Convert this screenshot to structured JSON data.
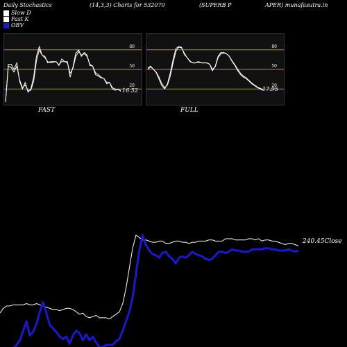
{
  "header": {
    "left": "Daily Stochastics",
    "center": "(14,3,3) Charts for 532070",
    "right_a": "(SUPERB P",
    "right_b": "APER) munafasutra.in"
  },
  "legend": [
    {
      "label": "Slow  D",
      "color": "#ffffff"
    },
    {
      "label": "Fast K",
      "color": "#ffffff"
    },
    {
      "label": "OBV",
      "color": "#0000ff"
    }
  ],
  "colors": {
    "background": "#000000",
    "panel": "#111111",
    "level_line": "#c8860a",
    "price": "#ffffff",
    "obv": "#1a1acc"
  },
  "chart_data": [
    {
      "type": "line",
      "title": "FAST",
      "ylim": [
        0,
        100
      ],
      "levels": [
        20,
        50,
        80
      ],
      "level_labels": [
        "20",
        "50",
        "80"
      ],
      "last_value": "16.52",
      "series": [
        {
          "values": [
            0,
            58,
            58,
            50,
            60,
            32,
            20,
            30,
            15,
            20,
            38,
            70,
            85,
            72,
            70,
            60,
            62,
            62,
            62,
            56,
            66,
            62,
            62,
            38,
            54,
            75,
            80,
            70,
            76,
            72,
            56,
            55,
            42,
            40,
            37,
            36,
            28,
            30,
            20,
            18,
            20,
            16.52
          ]
        },
        {
          "values": [
            0,
            55,
            53,
            46,
            55,
            34,
            22,
            26,
            18,
            18,
            32,
            63,
            80,
            72,
            68,
            62,
            60,
            61,
            62,
            57,
            62,
            62,
            60,
            44,
            52,
            70,
            77,
            72,
            74,
            70,
            58,
            55,
            45,
            42,
            38,
            36,
            30,
            30,
            22,
            20,
            19,
            18
          ]
        }
      ]
    },
    {
      "type": "line",
      "title": "FULL",
      "ylim": [
        0,
        100
      ],
      "levels": [
        20,
        50,
        80
      ],
      "level_labels": [
        "20",
        "50",
        "80"
      ],
      "last_value": "17.95",
      "series": [
        {
          "values": [
            52,
            55,
            50,
            45,
            35,
            25,
            20,
            28,
            45,
            65,
            82,
            85,
            84,
            73,
            68,
            62,
            60,
            60,
            62,
            60,
            60,
            60,
            58,
            48,
            55,
            70,
            76,
            76,
            74,
            70,
            62,
            56,
            48,
            42,
            38,
            36,
            32,
            28,
            25,
            22,
            20,
            17.95
          ]
        },
        {
          "values": [
            50,
            54,
            50,
            46,
            38,
            28,
            22,
            26,
            40,
            60,
            78,
            84,
            83,
            75,
            68,
            63,
            60,
            60,
            61,
            60,
            60,
            60,
            58,
            50,
            54,
            68,
            74,
            75,
            74,
            70,
            63,
            57,
            50,
            44,
            40,
            37,
            33,
            29,
            26,
            23,
            21,
            19
          ]
        }
      ]
    },
    {
      "type": "line",
      "last_value_label": "240.45Close",
      "series": [
        {
          "values": [
            0.27,
            0.31,
            0.33,
            0.33,
            0.34,
            0.34,
            0.34,
            0.34,
            0.35,
            0.34,
            0.34,
            0.35,
            0.34,
            0.33,
            0.32,
            0.31,
            0.3,
            0.3,
            0.29,
            0.3,
            0.31,
            0.31,
            0.3,
            0.28,
            0.26,
            0.27,
            0.24,
            0.23,
            0.24,
            0.25,
            0.23,
            0.23,
            0.23,
            0.22,
            0.24,
            0.26,
            0.28,
            0.35,
            0.48,
            0.65,
            0.82,
            0.93,
            0.91,
            0.89,
            0.89,
            0.88,
            0.87,
            0.87,
            0.88,
            0.88,
            0.86,
            0.86,
            0.87,
            0.88,
            0.88,
            0.87,
            0.87,
            0.86,
            0.87,
            0.87,
            0.88,
            0.88,
            0.88,
            0.89,
            0.89,
            0.88,
            0.88,
            0.88,
            0.9,
            0.9,
            0.9,
            0.89,
            0.89,
            0.89,
            0.89,
            0.9,
            0.9,
            0.89,
            0.9,
            0.88,
            0.89,
            0.89,
            0.88,
            0.88,
            0.87,
            0.86,
            0.85,
            0.86,
            0.86,
            0.85,
            0.84
          ]
        },
        {
          "values": [
            -0.03,
            -0.03,
            -0.03,
            -0.03,
            -0.03,
            0.0,
            0.04,
            0.12,
            0.2,
            0.08,
            0.11,
            0.18,
            0.28,
            0.36,
            0.27,
            0.17,
            0.14,
            0.11,
            0.07,
            0.05,
            0.07,
            0.01,
            0.08,
            0.12,
            0.1,
            0.04,
            0.09,
            0.04,
            0.07,
            0.02,
            -0.02,
            -0.02,
            0.0,
            0.0,
            0.0,
            0.03,
            0.05,
            0.12,
            0.2,
            0.28,
            0.4,
            0.6,
            0.8,
            0.93,
            0.85,
            0.8,
            0.77,
            0.76,
            0.74,
            0.78,
            0.79,
            0.75,
            0.73,
            0.69,
            0.74,
            0.75,
            0.74,
            0.76,
            0.79,
            0.77,
            0.76,
            0.75,
            0.73,
            0.72,
            0.73,
            0.76,
            0.79,
            0.79,
            0.78,
            0.79,
            0.81,
            0.8,
            0.8,
            0.79,
            0.79,
            0.79,
            0.81,
            0.81,
            0.81,
            0.81,
            0.82,
            0.82,
            0.81,
            0.81,
            0.8,
            0.8,
            0.8,
            0.81,
            0.8,
            0.79,
            0.8
          ]
        }
      ]
    }
  ]
}
